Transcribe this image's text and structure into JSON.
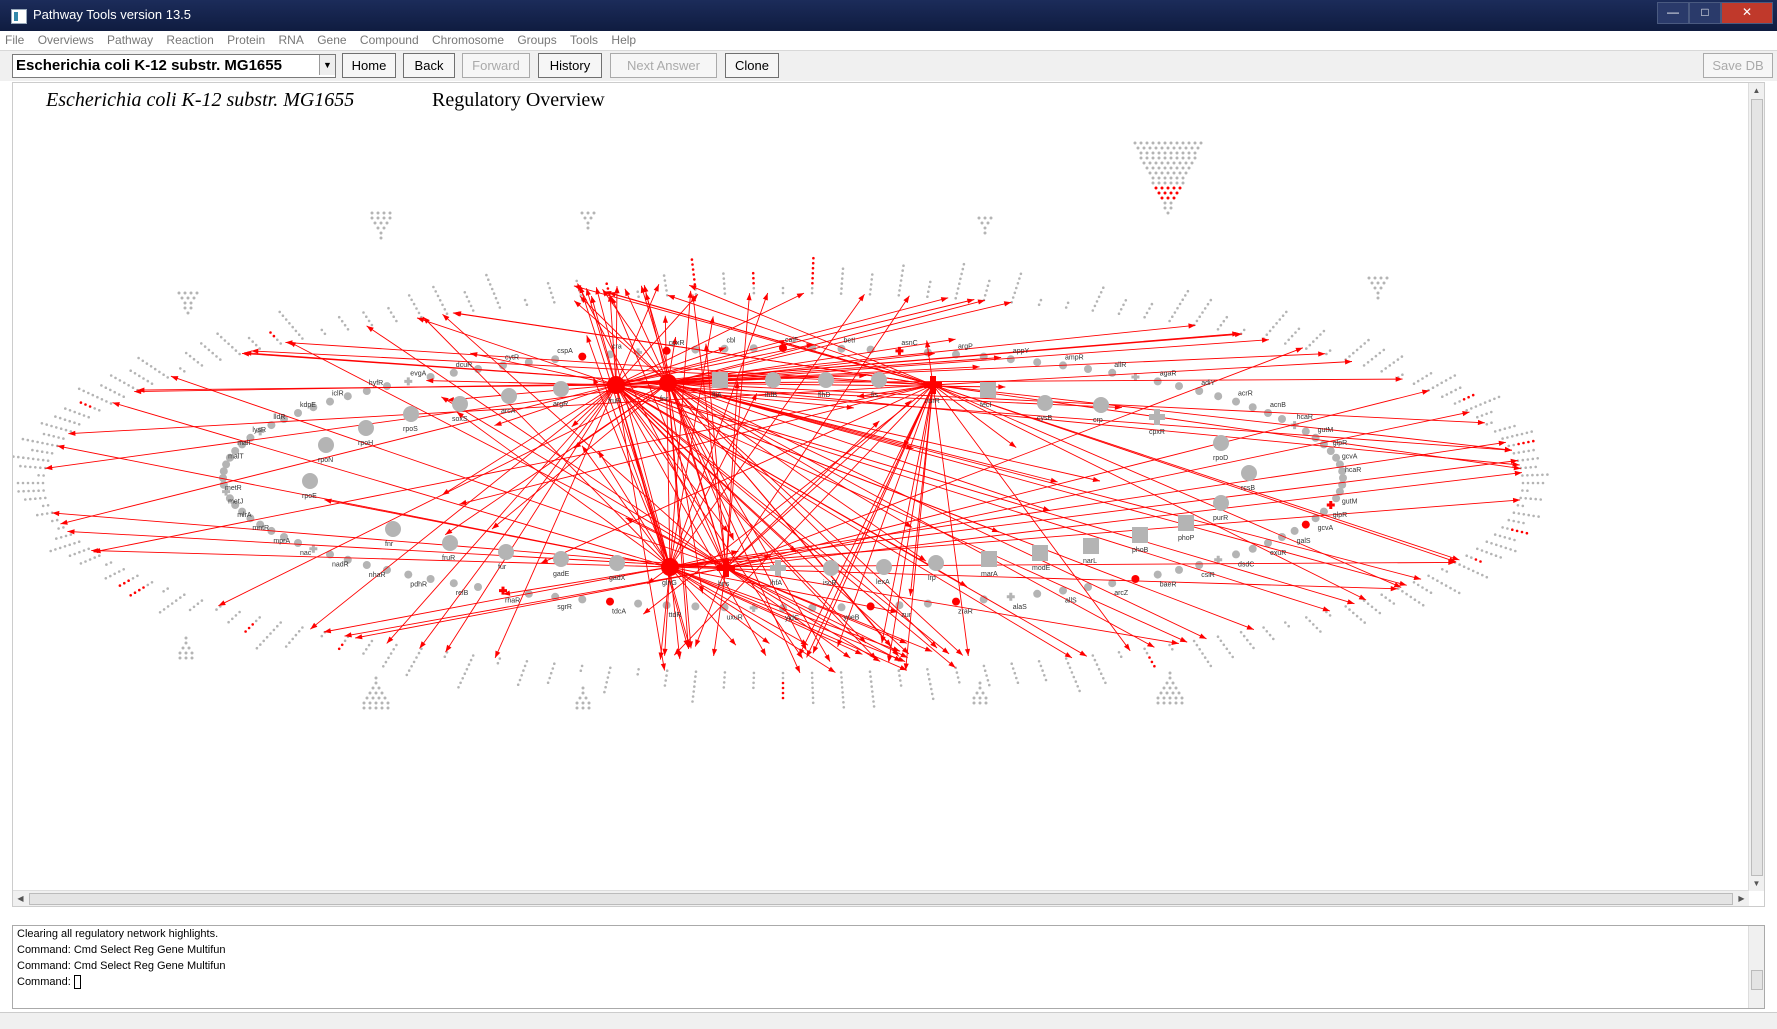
{
  "window": {
    "title": "Pathway Tools version 13.5"
  },
  "menu": [
    "File",
    "Overviews",
    "Pathway",
    "Reaction",
    "Protein",
    "RNA",
    "Gene",
    "Compound",
    "Chromosome",
    "Groups",
    "Tools",
    "Help"
  ],
  "toolbar": {
    "organism": "Escherichia coli K-12 substr. MG1655",
    "home": "Home",
    "back": "Back",
    "forward": "Forward",
    "history": "History",
    "next_answer": "Next Answer",
    "clone": "Clone",
    "save_db": "Save DB"
  },
  "view": {
    "organism_title": "Escherichia coli K-12 substr. MG1655",
    "title": "Regulatory Overview"
  },
  "colors": {
    "highlight": "#ff0000",
    "node": "#b4b4b4",
    "titlebar": "#132350"
  },
  "network": {
    "hub_labels": [
      "fruR",
      "fnr",
      "fliA",
      "ihfB",
      "flhD",
      "fis",
      "nsrR",
      "fecI",
      "cysB",
      "crp",
      "cpxR",
      "argR",
      "arcA",
      "soxS",
      "rpoS",
      "rpoH",
      "rpoN",
      "rpoE",
      "rpoD",
      "rcsB",
      "purR",
      "phoP",
      "phoB",
      "narL",
      "modE",
      "marA",
      "lrp",
      "lexA",
      "iscR",
      "ihfA",
      "hns",
      "glnG",
      "gadX",
      "gadE",
      "fur"
    ],
    "inner_ring_labels": [
      "hcaR",
      "gutM",
      "glpR",
      "gcvA",
      "galS",
      "exuR",
      "dsdC",
      "csiR",
      "baeR",
      "arcZ",
      "allS",
      "alaS",
      "zraR",
      "zur",
      "yoeB",
      "yjdC",
      "uxuR",
      "ttdR",
      "tdcA",
      "sgrR",
      "rhaR",
      "relB",
      "pdhR",
      "nhaR",
      "nadR",
      "nac",
      "mprA",
      "mntR",
      "mlrA",
      "metJ",
      "metR",
      "malT",
      "malI",
      "lysR",
      "lldR",
      "kdpE",
      "iclR",
      "hyfR",
      "evgA",
      "dcuR",
      "cytR",
      "cspA",
      "cra",
      "cpxR",
      "cbl",
      "caiF",
      "betI",
      "asnC",
      "argP",
      "appY",
      "ampR",
      "allR",
      "agaR",
      "adiY",
      "acrR",
      "acnB"
    ],
    "red_nodes": [
      "fruR",
      "fnr",
      "nsrR",
      "ihfB",
      "phoP"
    ]
  }
}
